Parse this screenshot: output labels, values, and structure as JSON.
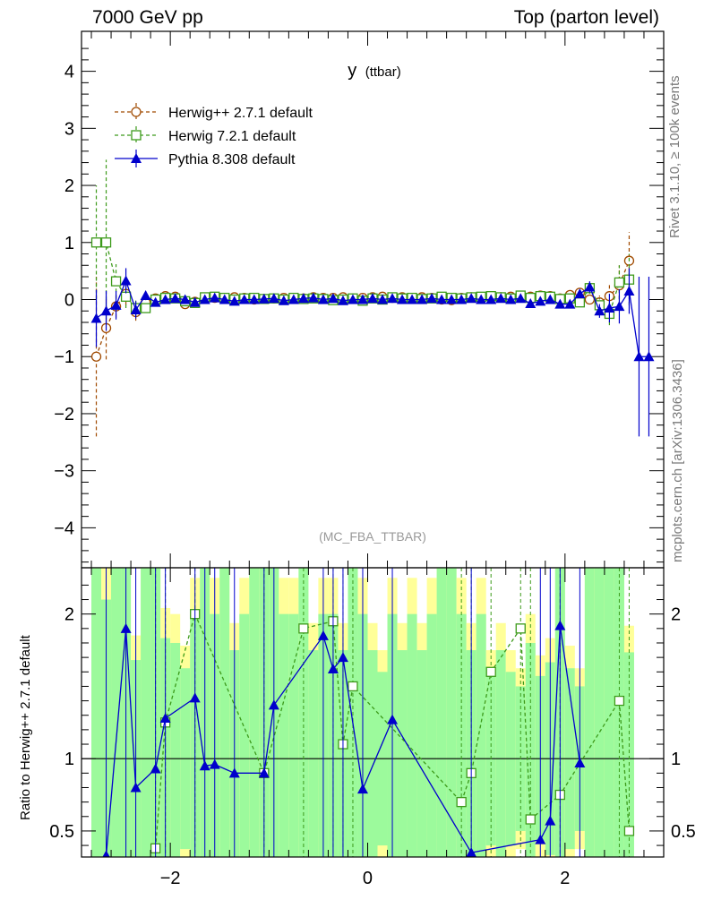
{
  "header": {
    "left": "7000 GeV pp",
    "right": "Top (parton level)"
  },
  "side_labels": {
    "rivet": "Rivet 3.1.10, ≥ 100k events",
    "mcplots": "mcplots.cern.ch [arXiv:1306.3436]"
  },
  "analysis_tag": "(MC_FBA_TTBAR)",
  "chart_data": [
    {
      "type": "line",
      "title": "y (ttbar)",
      "title_main": "y",
      "title_sub": "(ttbar)",
      "xlim": [
        -2.9,
        3.0
      ],
      "ylim": [
        -4.7,
        4.7
      ],
      "x_ticks": [
        -2,
        0,
        2
      ],
      "x_tick_labels": [
        "−2",
        "0",
        "2"
      ],
      "y_ticks": [
        -4,
        -3,
        -2,
        -1,
        0,
        1,
        2,
        3,
        4
      ],
      "y_tick_labels": [
        "−4",
        "−3",
        "−2",
        "−1",
        "0",
        "1",
        "2",
        "3",
        "4"
      ],
      "legend_position": "top-left",
      "series": [
        {
          "name": "Herwig++ 2.7.1 default",
          "color": "#a04a00",
          "marker": "open-circle",
          "style": "dashed",
          "x": [
            -2.75,
            -2.65,
            -2.55,
            -2.45,
            -2.35,
            -2.25,
            -2.15,
            -2.05,
            -1.95,
            -1.85,
            -1.75,
            -1.65,
            -1.55,
            -1.45,
            -1.35,
            -1.25,
            -1.15,
            -1.05,
            -0.95,
            -0.85,
            -0.75,
            -0.65,
            -0.55,
            -0.45,
            -0.35,
            -0.25,
            -0.15,
            -0.05,
            0.05,
            0.15,
            0.25,
            0.35,
            0.45,
            0.55,
            0.65,
            0.75,
            0.85,
            0.95,
            1.05,
            1.15,
            1.25,
            1.35,
            1.45,
            1.55,
            1.65,
            1.75,
            1.85,
            1.95,
            2.05,
            2.15,
            2.25,
            2.35,
            2.45,
            2.55,
            2.65
          ],
          "y": [
            -1.0,
            -0.5,
            -0.12,
            0.1,
            -0.22,
            -0.05,
            0.02,
            0.06,
            0.05,
            -0.08,
            -0.04,
            0.02,
            0.03,
            0.01,
            0.04,
            0.03,
            0.0,
            0.01,
            0.02,
            0.03,
            0.03,
            0.02,
            0.04,
            0.03,
            0.03,
            0.04,
            0.02,
            0.03,
            0.04,
            0.05,
            0.03,
            0.04,
            0.03,
            0.04,
            0.03,
            0.0,
            -0.01,
            0.03,
            0.04,
            0.03,
            0.05,
            0.04,
            0.05,
            0.06,
            0.05,
            0.07,
            0.06,
            0.02,
            0.08,
            0.12,
            0.0,
            -0.05,
            0.06,
            0.25,
            0.68
          ],
          "yerr": [
            1.4,
            0.55,
            0.2,
            0.2,
            0.15,
            0.08,
            0.06,
            0.05,
            0.04,
            0.05,
            0.04,
            0.03,
            0.03,
            0.03,
            0.03,
            0.03,
            0.03,
            0.03,
            0.03,
            0.03,
            0.03,
            0.03,
            0.03,
            0.03,
            0.03,
            0.03,
            0.03,
            0.03,
            0.03,
            0.03,
            0.03,
            0.03,
            0.03,
            0.03,
            0.03,
            0.03,
            0.03,
            0.03,
            0.03,
            0.03,
            0.03,
            0.03,
            0.03,
            0.03,
            0.04,
            0.04,
            0.04,
            0.04,
            0.05,
            0.06,
            0.08,
            0.12,
            0.2,
            0.35,
            0.5
          ]
        },
        {
          "name": "Herwig 7.2.1 default",
          "color": "#3c9a1a",
          "marker": "open-square",
          "style": "dashed",
          "x": [
            -2.75,
            -2.65,
            -2.55,
            -2.45,
            -2.35,
            -2.25,
            -2.15,
            -2.05,
            -1.95,
            -1.85,
            -1.75,
            -1.65,
            -1.55,
            -1.45,
            -1.35,
            -1.25,
            -1.15,
            -1.05,
            -0.95,
            -0.85,
            -0.75,
            -0.65,
            -0.55,
            -0.45,
            -0.35,
            -0.25,
            -0.15,
            -0.05,
            0.05,
            0.15,
            0.25,
            0.35,
            0.45,
            0.55,
            0.65,
            0.75,
            0.85,
            0.95,
            1.05,
            1.15,
            1.25,
            1.35,
            1.45,
            1.55,
            1.65,
            1.75,
            1.85,
            1.95,
            2.05,
            2.15,
            2.25,
            2.35,
            2.45,
            2.55,
            2.65
          ],
          "y": [
            1.0,
            1.0,
            0.32,
            0.05,
            -0.15,
            -0.15,
            0.0,
            0.03,
            0.02,
            -0.03,
            -0.06,
            0.04,
            0.05,
            0.03,
            0.0,
            0.02,
            0.03,
            0.01,
            0.02,
            0.0,
            0.03,
            0.01,
            0.02,
            0.01,
            -0.01,
            0.0,
            0.02,
            -0.02,
            0.02,
            0.0,
            0.04,
            0.02,
            0.03,
            0.01,
            0.02,
            0.05,
            0.03,
            0.02,
            0.04,
            0.05,
            0.06,
            0.04,
            0.02,
            0.07,
            0.03,
            0.06,
            0.05,
            0.01,
            0.02,
            -0.05,
            0.2,
            -0.1,
            -0.25,
            0.3,
            0.35
          ],
          "yerr": [
            1.0,
            1.45,
            0.3,
            0.2,
            0.15,
            0.08,
            0.06,
            0.05,
            0.04,
            0.05,
            0.04,
            0.03,
            0.03,
            0.03,
            0.03,
            0.03,
            0.03,
            0.03,
            0.03,
            0.03,
            0.03,
            0.03,
            0.03,
            0.03,
            0.03,
            0.03,
            0.03,
            0.03,
            0.03,
            0.03,
            0.03,
            0.03,
            0.03,
            0.03,
            0.03,
            0.03,
            0.03,
            0.03,
            0.03,
            0.03,
            0.03,
            0.03,
            0.03,
            0.03,
            0.04,
            0.04,
            0.04,
            0.04,
            0.05,
            0.06,
            0.1,
            0.12,
            0.2,
            0.3,
            0.45
          ]
        },
        {
          "name": "Pythia 8.308 default",
          "color": "#0000cc",
          "marker": "filled-triangle",
          "style": "solid",
          "x": [
            -2.75,
            -2.65,
            -2.55,
            -2.45,
            -2.35,
            -2.25,
            -2.15,
            -2.05,
            -1.95,
            -1.85,
            -1.75,
            -1.65,
            -1.55,
            -1.45,
            -1.35,
            -1.25,
            -1.15,
            -1.05,
            -0.95,
            -0.85,
            -0.75,
            -0.65,
            -0.55,
            -0.45,
            -0.35,
            -0.25,
            -0.15,
            -0.05,
            0.05,
            0.15,
            0.25,
            0.35,
            0.45,
            0.55,
            0.65,
            0.75,
            0.85,
            0.95,
            1.05,
            1.15,
            1.25,
            1.35,
            1.45,
            1.55,
            1.65,
            1.75,
            1.85,
            1.95,
            2.05,
            2.15,
            2.25,
            2.35,
            2.45,
            2.55,
            2.65,
            2.75,
            2.85
          ],
          "y": [
            -0.33,
            -0.2,
            -0.1,
            0.33,
            -0.18,
            0.07,
            -0.05,
            0.0,
            0.02,
            0.0,
            -0.05,
            0.0,
            0.03,
            0.0,
            -0.03,
            0.0,
            0.0,
            0.01,
            0.02,
            -0.02,
            0.0,
            0.02,
            0.03,
            0.0,
            0.02,
            -0.02,
            0.0,
            0.0,
            0.02,
            0.0,
            0.02,
            0.0,
            0.0,
            0.0,
            0.02,
            0.0,
            0.0,
            0.0,
            0.02,
            0.0,
            0.0,
            0.02,
            0.0,
            0.02,
            -0.07,
            -0.03,
            0.0,
            -0.08,
            -0.08,
            0.1,
            0.22,
            -0.2,
            -0.15,
            -0.12,
            0.15,
            -1.0,
            -1.0
          ],
          "yerr": [
            0.5,
            0.35,
            0.25,
            0.22,
            0.15,
            0.08,
            0.06,
            0.05,
            0.04,
            0.05,
            0.04,
            0.03,
            0.03,
            0.03,
            0.03,
            0.03,
            0.03,
            0.03,
            0.03,
            0.03,
            0.03,
            0.03,
            0.03,
            0.03,
            0.03,
            0.03,
            0.03,
            0.03,
            0.03,
            0.03,
            0.03,
            0.03,
            0.03,
            0.03,
            0.03,
            0.03,
            0.03,
            0.03,
            0.03,
            0.03,
            0.03,
            0.03,
            0.03,
            0.03,
            0.04,
            0.04,
            0.04,
            0.04,
            0.05,
            0.06,
            0.1,
            0.12,
            0.25,
            0.3,
            0.4,
            1.4,
            1.4
          ]
        }
      ]
    },
    {
      "type": "line",
      "ylabel": "Ratio to Herwig++ 2.7.1 default",
      "xlim": [
        -2.9,
        3.0
      ],
      "ylim": [
        0.32,
        2.32
      ],
      "y_ticks": [
        0.5,
        1,
        2
      ],
      "y_tick_labels": [
        "0.5",
        "1",
        "2"
      ],
      "x_ticks": [
        -2,
        0,
        2
      ],
      "x_tick_labels": [
        "−2",
        "0",
        "2"
      ],
      "reference_line": 1,
      "band_colors": {
        "inner": "#9cfa9c",
        "outer": "#ffff99"
      },
      "series": [
        {
          "name": "Herwig 7.2.1 default",
          "color": "#3c9a1a",
          "marker": "open-square",
          "style": "dashed",
          "x": [
            -2.15,
            -2.05,
            -1.75,
            -1.05,
            -0.65,
            -0.35,
            -0.25,
            -0.15,
            0.95,
            1.05,
            1.25,
            1.55,
            1.65,
            1.95,
            2.55,
            2.65
          ],
          "y": [
            0.38,
            1.25,
            2.0,
            0.9,
            1.9,
            1.95,
            1.1,
            1.5,
            0.7,
            0.9,
            1.6,
            1.9,
            0.58,
            0.75,
            1.4,
            0.5
          ]
        },
        {
          "name": "Pythia 8.308 default",
          "color": "#0000cc",
          "marker": "filled-triangle",
          "style": "solid",
          "x": [
            -2.65,
            -2.45,
            -2.35,
            -2.15,
            -2.05,
            -1.75,
            -1.65,
            -1.55,
            -1.35,
            -1.05,
            -0.95,
            -0.45,
            -0.35,
            -0.25,
            -0.05,
            0.25,
            1.05,
            1.75,
            1.85,
            1.95,
            2.15
          ],
          "y": [
            0.33,
            1.9,
            0.8,
            0.93,
            1.28,
            1.42,
            0.95,
            0.96,
            0.9,
            0.9,
            1.37,
            1.85,
            1.62,
            1.7,
            0.79,
            1.27,
            0.35,
            0.44,
            0.57,
            1.92,
            0.97
          ]
        }
      ]
    }
  ]
}
